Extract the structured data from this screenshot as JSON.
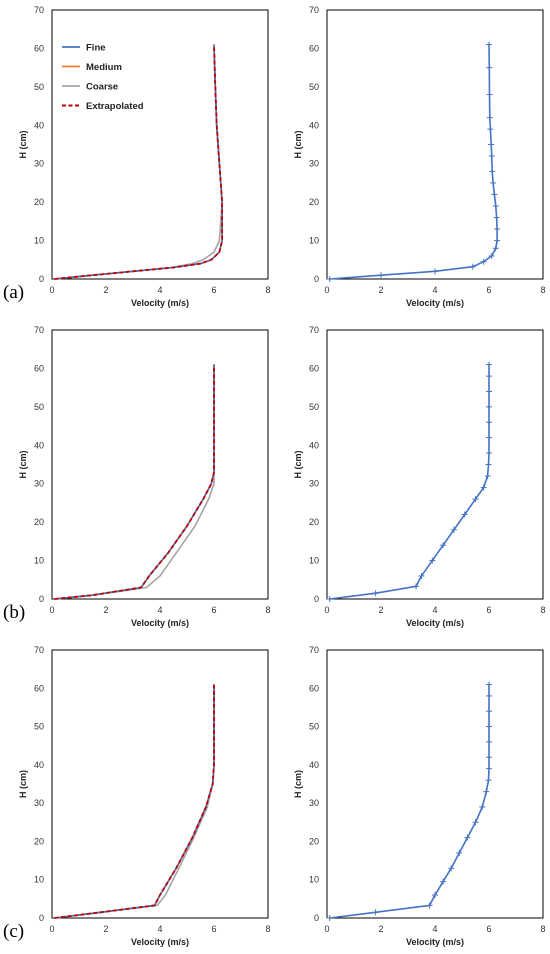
{
  "colors": {
    "fine": "#4472C4",
    "medium": "#ED7D31",
    "coarse": "#A5A5A5",
    "extrapolated": "#C00000"
  },
  "legend": [
    "Fine",
    "Medium",
    "Coarse",
    "Extrapolated"
  ],
  "chart_data": [
    {
      "panel": "(a)",
      "type": "line",
      "xlabel": "Velocity (m/s)",
      "ylabel": "H (cm)",
      "xlim": [
        0,
        8
      ],
      "ylim": [
        0,
        70
      ],
      "xticks": [
        0,
        2,
        4,
        6,
        8
      ],
      "yticks": [
        0,
        10,
        20,
        30,
        40,
        50,
        60,
        70
      ],
      "legend_position": "top-left",
      "series": [
        {
          "name": "Fine",
          "style": "solid",
          "x": [
            0.1,
            1.5,
            3.0,
            4.5,
            5.5,
            5.9,
            6.2,
            6.3,
            6.3,
            6.2,
            6.1,
            6.05,
            6.0
          ],
          "y": [
            0,
            1,
            2,
            3,
            4,
            5,
            7,
            10,
            20,
            30,
            40,
            50,
            61
          ]
        },
        {
          "name": "Medium",
          "style": "solid",
          "x": [
            0.1,
            1.5,
            3.0,
            4.5,
            5.5,
            5.9,
            6.2,
            6.3,
            6.3,
            6.2,
            6.1,
            6.05,
            6.0
          ],
          "y": [
            0,
            1,
            2,
            3,
            4,
            5,
            7,
            10,
            20,
            30,
            40,
            50,
            61
          ]
        },
        {
          "name": "Coarse",
          "style": "solid",
          "x": [
            0.1,
            1.5,
            3.0,
            4.4,
            5.2,
            5.6,
            6.0,
            6.2,
            6.3,
            6.2,
            6.1,
            6.05,
            6.0
          ],
          "y": [
            0,
            1,
            2,
            3,
            4,
            5,
            7,
            10,
            20,
            30,
            40,
            50,
            61
          ]
        },
        {
          "name": "Extrapolated",
          "style": "dashed",
          "x": [
            0.1,
            1.5,
            3.0,
            4.5,
            5.5,
            5.9,
            6.2,
            6.3,
            6.3,
            6.2,
            6.1,
            6.05,
            6.0
          ],
          "y": [
            0,
            1,
            2,
            3,
            4,
            5,
            7,
            10,
            20,
            30,
            40,
            50,
            61
          ]
        }
      ]
    },
    {
      "panel": "",
      "type": "line",
      "xlabel": "Velocity (m/s)",
      "ylabel": "H (cm)",
      "xlim": [
        0,
        8
      ],
      "ylim": [
        0,
        70
      ],
      "xticks": [
        0,
        2,
        4,
        6,
        8
      ],
      "yticks": [
        0,
        10,
        20,
        30,
        40,
        50,
        60,
        70
      ],
      "series": [
        {
          "name": "Fine",
          "style": "markers",
          "x": [
            0.1,
            2.0,
            4.0,
            5.4,
            5.8,
            6.1,
            6.25,
            6.3,
            6.3,
            6.28,
            6.25,
            6.2,
            6.15,
            6.12,
            6.1,
            6.08,
            6.05,
            6.03,
            6.02,
            6.01,
            6.0
          ],
          "y": [
            0,
            1,
            2,
            3.2,
            4.5,
            6,
            8,
            10,
            13,
            16,
            19,
            22,
            25,
            28,
            32,
            35,
            39,
            42,
            48,
            55,
            61
          ]
        }
      ]
    },
    {
      "panel": "(b)",
      "type": "line",
      "xlabel": "Velocity (m/s)",
      "ylabel": "H (cm)",
      "xlim": [
        0,
        8
      ],
      "ylim": [
        0,
        70
      ],
      "xticks": [
        0,
        2,
        4,
        6,
        8
      ],
      "yticks": [
        0,
        10,
        20,
        30,
        40,
        50,
        60,
        70
      ],
      "series": [
        {
          "name": "Fine",
          "style": "solid",
          "x": [
            0.1,
            1.5,
            3.3,
            3.6,
            4.3,
            5.0,
            5.6,
            5.9,
            6.0,
            6.0,
            6.0
          ],
          "y": [
            0,
            1,
            3,
            6,
            12,
            19,
            26,
            30,
            33,
            45,
            61
          ]
        },
        {
          "name": "Medium",
          "style": "solid",
          "x": [
            0.1,
            1.5,
            3.3,
            3.6,
            4.3,
            5.0,
            5.6,
            5.9,
            6.0,
            6.0,
            6.0
          ],
          "y": [
            0,
            1,
            3,
            6,
            12,
            19,
            26,
            30,
            33,
            45,
            61
          ]
        },
        {
          "name": "Coarse",
          "style": "solid",
          "x": [
            0.1,
            1.5,
            3.5,
            4.0,
            4.6,
            5.3,
            5.8,
            6.0,
            6.0,
            6.0,
            6.0
          ],
          "y": [
            0,
            1,
            3,
            6,
            12,
            19,
            26,
            30,
            33,
            45,
            61
          ]
        },
        {
          "name": "Extrapolated",
          "style": "dashed",
          "x": [
            0.1,
            1.5,
            3.3,
            3.6,
            4.3,
            5.0,
            5.6,
            5.9,
            6.0,
            6.0,
            6.0
          ],
          "y": [
            0,
            1,
            3,
            6,
            12,
            19,
            26,
            30,
            33,
            45,
            61
          ]
        }
      ]
    },
    {
      "panel": "",
      "type": "line",
      "xlabel": "Velocity (m/s)",
      "ylabel": "H (cm)",
      "xlim": [
        0,
        8
      ],
      "ylim": [
        0,
        70
      ],
      "xticks": [
        0,
        2,
        4,
        6,
        8
      ],
      "yticks": [
        0,
        10,
        20,
        30,
        40,
        50,
        60,
        70
      ],
      "series": [
        {
          "name": "Fine",
          "style": "markers",
          "x": [
            0.1,
            1.8,
            3.3,
            3.5,
            3.9,
            4.3,
            4.7,
            5.1,
            5.5,
            5.8,
            5.95,
            5.98,
            6.0,
            6.0,
            6.0,
            6.0,
            6.0,
            6.0,
            6.0
          ],
          "y": [
            0,
            1.5,
            3.3,
            6,
            10,
            14,
            18,
            22,
            26,
            29,
            32,
            35,
            38,
            42,
            46,
            50,
            54,
            58,
            61
          ]
        }
      ]
    },
    {
      "panel": "(c)",
      "type": "line",
      "xlabel": "Velocity (m/s)",
      "ylabel": "H (cm)",
      "xlim": [
        0,
        8
      ],
      "ylim": [
        0,
        70
      ],
      "xticks": [
        0,
        2,
        4,
        6,
        8
      ],
      "yticks": [
        0,
        10,
        20,
        30,
        40,
        50,
        60,
        70
      ],
      "series": [
        {
          "name": "Fine",
          "style": "solid",
          "x": [
            0.1,
            1.8,
            3.8,
            4.0,
            4.6,
            5.2,
            5.7,
            5.95,
            6.0,
            6.0
          ],
          "y": [
            0,
            1.5,
            3.3,
            6,
            13,
            21,
            29,
            35,
            40,
            61
          ]
        },
        {
          "name": "Medium",
          "style": "solid",
          "x": [
            0.1,
            1.8,
            3.8,
            4.0,
            4.6,
            5.2,
            5.7,
            5.95,
            6.0,
            6.0
          ],
          "y": [
            0,
            1.5,
            3.3,
            6,
            13,
            21,
            29,
            35,
            40,
            61
          ]
        },
        {
          "name": "Coarse",
          "style": "solid",
          "x": [
            0.1,
            1.8,
            3.9,
            4.2,
            4.7,
            5.25,
            5.75,
            5.95,
            6.0,
            6.0
          ],
          "y": [
            0,
            1.5,
            3.3,
            6,
            13,
            21,
            29,
            35,
            40,
            61
          ]
        },
        {
          "name": "Extrapolated",
          "style": "dashed",
          "x": [
            0.1,
            1.8,
            3.8,
            4.0,
            4.6,
            5.2,
            5.7,
            5.95,
            6.0,
            6.0
          ],
          "y": [
            0,
            1.5,
            3.3,
            6,
            13,
            21,
            29,
            35,
            40,
            61
          ]
        }
      ]
    },
    {
      "panel": "",
      "type": "line",
      "xlabel": "Velocity (m/s)",
      "ylabel": "H (cm)",
      "xlim": [
        0,
        8
      ],
      "ylim": [
        0,
        70
      ],
      "xticks": [
        0,
        2,
        4,
        6,
        8
      ],
      "yticks": [
        0,
        10,
        20,
        30,
        40,
        50,
        60,
        70
      ],
      "series": [
        {
          "name": "Fine",
          "style": "markers",
          "x": [
            0.1,
            1.8,
            3.8,
            4.0,
            4.3,
            4.6,
            4.9,
            5.2,
            5.5,
            5.75,
            5.9,
            5.98,
            6.0,
            6.0,
            6.0,
            6.0,
            6.0,
            6.0,
            6.0
          ],
          "y": [
            0,
            1.5,
            3.3,
            6,
            9.5,
            13,
            17,
            21,
            25,
            29,
            33,
            36,
            39,
            42,
            46,
            50,
            54,
            58,
            61
          ]
        }
      ]
    }
  ]
}
